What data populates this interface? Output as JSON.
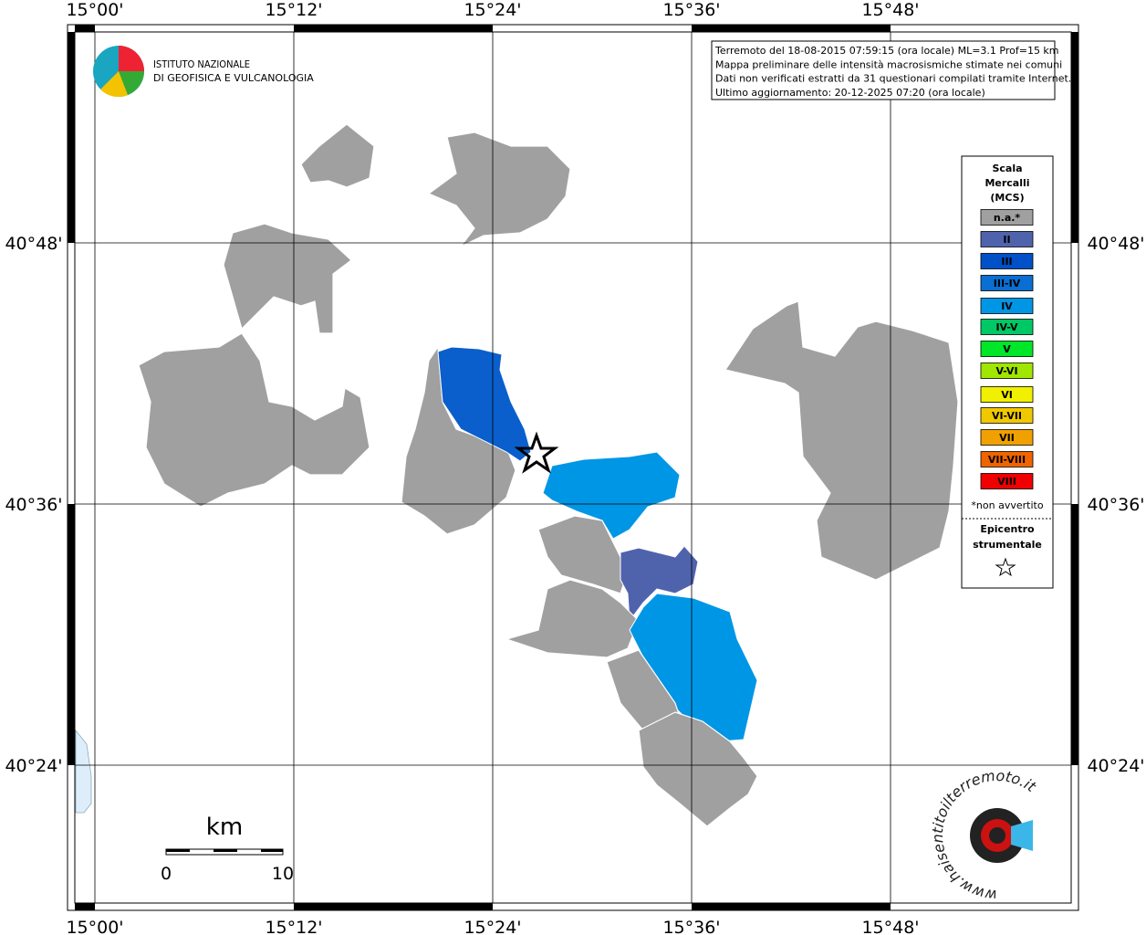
{
  "map": {
    "lon_labels": [
      "15°00'",
      "15°12'",
      "15°24'",
      "15°36'",
      "15°48'"
    ],
    "lat_labels": [
      "40°48'",
      "40°36'",
      "40°24'"
    ],
    "info": [
      "Terremoto del 18-08-2015 07:59:15 (ora locale) ML=3.1 Prof=15 km",
      "Mappa preliminare delle intensità macrosismiche stimate nei comuni",
      "Dati non verificati estratti da 31 questionari compilati tramite Internet.",
      "Ultimo aggiornamento: 20-12-2025 07:20 (ora locale)"
    ],
    "institute": [
      "ISTITUTO NAZIONALE",
      "DI GEOFISICA E VULCANOLOGIA"
    ],
    "legend": {
      "title": [
        "Scala",
        "Mercalli",
        "(MCS)"
      ],
      "items": [
        {
          "label": "n.a.*",
          "color": "#a0a0a0"
        },
        {
          "label": "II",
          "color": "#4f63ad"
        },
        {
          "label": "III",
          "color": "#0050c8"
        },
        {
          "label": "III-IV",
          "color": "#0a6ed2"
        },
        {
          "label": "IV",
          "color": "#0096e6"
        },
        {
          "label": "IV-V",
          "color": "#00c864"
        },
        {
          "label": "V",
          "color": "#00e628"
        },
        {
          "label": "V-VI",
          "color": "#a0e600"
        },
        {
          "label": "VI",
          "color": "#f0f000"
        },
        {
          "label": "VI-VII",
          "color": "#f0c800"
        },
        {
          "label": "VII",
          "color": "#f0a000"
        },
        {
          "label": "VII-VIII",
          "color": "#f06400"
        },
        {
          "label": "VIII",
          "color": "#f00000"
        }
      ],
      "note": "*non avvertito",
      "epicenter": [
        "Epicentro",
        "strumentale"
      ]
    },
    "scale_bar": {
      "unit": "km",
      "labels": [
        "0",
        "10"
      ]
    },
    "site_logo": "www.haisentitoilterremoto.it"
  }
}
